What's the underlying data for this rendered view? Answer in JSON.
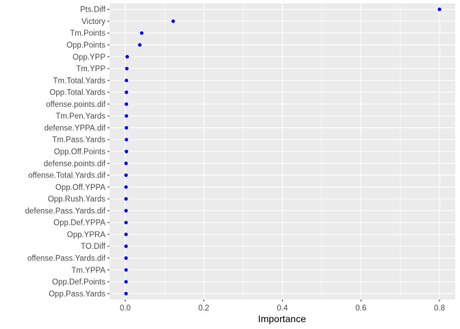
{
  "chart_data": {
    "type": "scatter",
    "title": "",
    "xlabel": "Importance",
    "ylabel": "",
    "xlim": [
      -0.04,
      0.84
    ],
    "x_ticks": [
      0.0,
      0.2,
      0.4,
      0.6,
      0.8
    ],
    "x_tick_labels": [
      "0.0",
      "0.2",
      "0.4",
      "0.6",
      "0.8"
    ],
    "grid": true,
    "legend": "none",
    "colors": {
      "panel": "#ebebeb",
      "grid": "#ffffff",
      "point": "#0000ff"
    },
    "categories": [
      "Pts.Diff",
      "Victory",
      "Tm.Points",
      "Opp.Points",
      "Opp.YPP",
      "Tm.YPP",
      "Tm.Total.Yards",
      "Opp.Total.Yards",
      "offense.points.dif",
      "Tm.Pen.Yards",
      "defense.YPPA.dif",
      "Tm.Pass.Yards",
      "Opp.Off.Points",
      "defense.points.dif",
      "offense.Total.Yards.dif",
      "Opp.Off.YPPA",
      "Opp.Rush.Yards",
      "defense.Pass.Yards.dif",
      "Opp.Def.YPPA",
      "Opp.YPRA",
      "TO.Diff",
      "offense.Pass.Yards.dif",
      "Tm.YPPA",
      "Opp.Def.Points",
      "Opp.Pass.Yards"
    ],
    "values": [
      0.8,
      0.122,
      0.042,
      0.037,
      0.005,
      0.004,
      0.003,
      0.003,
      0.003,
      0.003,
      0.003,
      0.003,
      0.003,
      0.002,
      0.002,
      0.002,
      0.002,
      0.002,
      0.002,
      0.002,
      0.002,
      0.002,
      0.002,
      0.002,
      0.002
    ]
  }
}
